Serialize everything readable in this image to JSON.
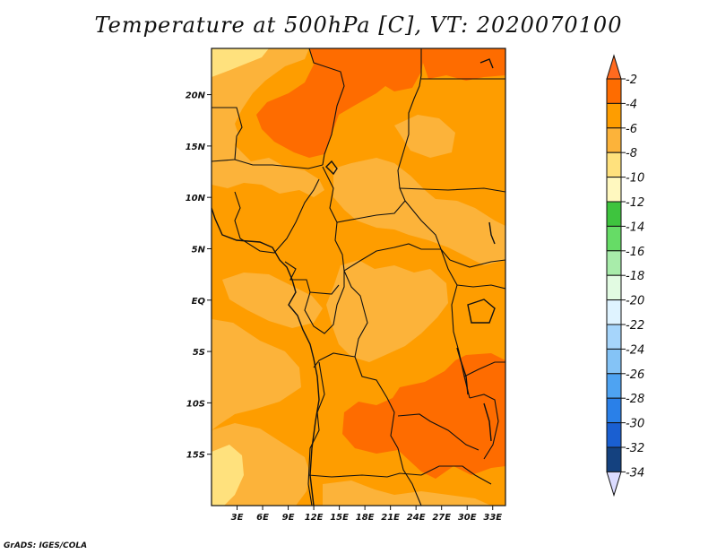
{
  "title": "Temperature at 500hPa [C], VT: 2020070100",
  "credit": "GrADS: IGES/COLA",
  "lat_ticks": [
    "20N",
    "15N",
    "10N",
    "5N",
    "EQ",
    "5S",
    "10S",
    "15S"
  ],
  "lat_values": [
    20,
    15,
    10,
    5,
    0,
    -5,
    -10,
    -15
  ],
  "lon_ticks": [
    "3E",
    "6E",
    "9E",
    "12E",
    "15E",
    "18E",
    "21E",
    "24E",
    "27E",
    "30E",
    "33E"
  ],
  "lon_values": [
    3,
    6,
    9,
    12,
    15,
    18,
    21,
    24,
    27,
    30,
    33
  ],
  "map_extent": {
    "lon_min": 0,
    "lon_max": 34.5,
    "lat_min": -20,
    "lat_max": 24.5
  },
  "colorbar": {
    "labels": [
      "-2",
      "-4",
      "-6",
      "-8",
      "-10",
      "-12",
      "-14",
      "-16",
      "-18",
      "-20",
      "-22",
      "-24",
      "-26",
      "-28",
      "-30",
      "-32",
      "-34"
    ],
    "colors": [
      "#ff6a1f",
      "#fe6c00",
      "#fe9d00",
      "#fcb33a",
      "#ffe17d",
      "#fff8bf",
      "#3ec43e",
      "#66dc66",
      "#a8ecaa",
      "#e2fbe2",
      "#dff3ff",
      "#a6d5fb",
      "#84c3f6",
      "#4ea3f2",
      "#2a80e8",
      "#1a5fd1",
      "#14417f",
      "#0b0b6e",
      "#dcdcff"
    ]
  }
}
